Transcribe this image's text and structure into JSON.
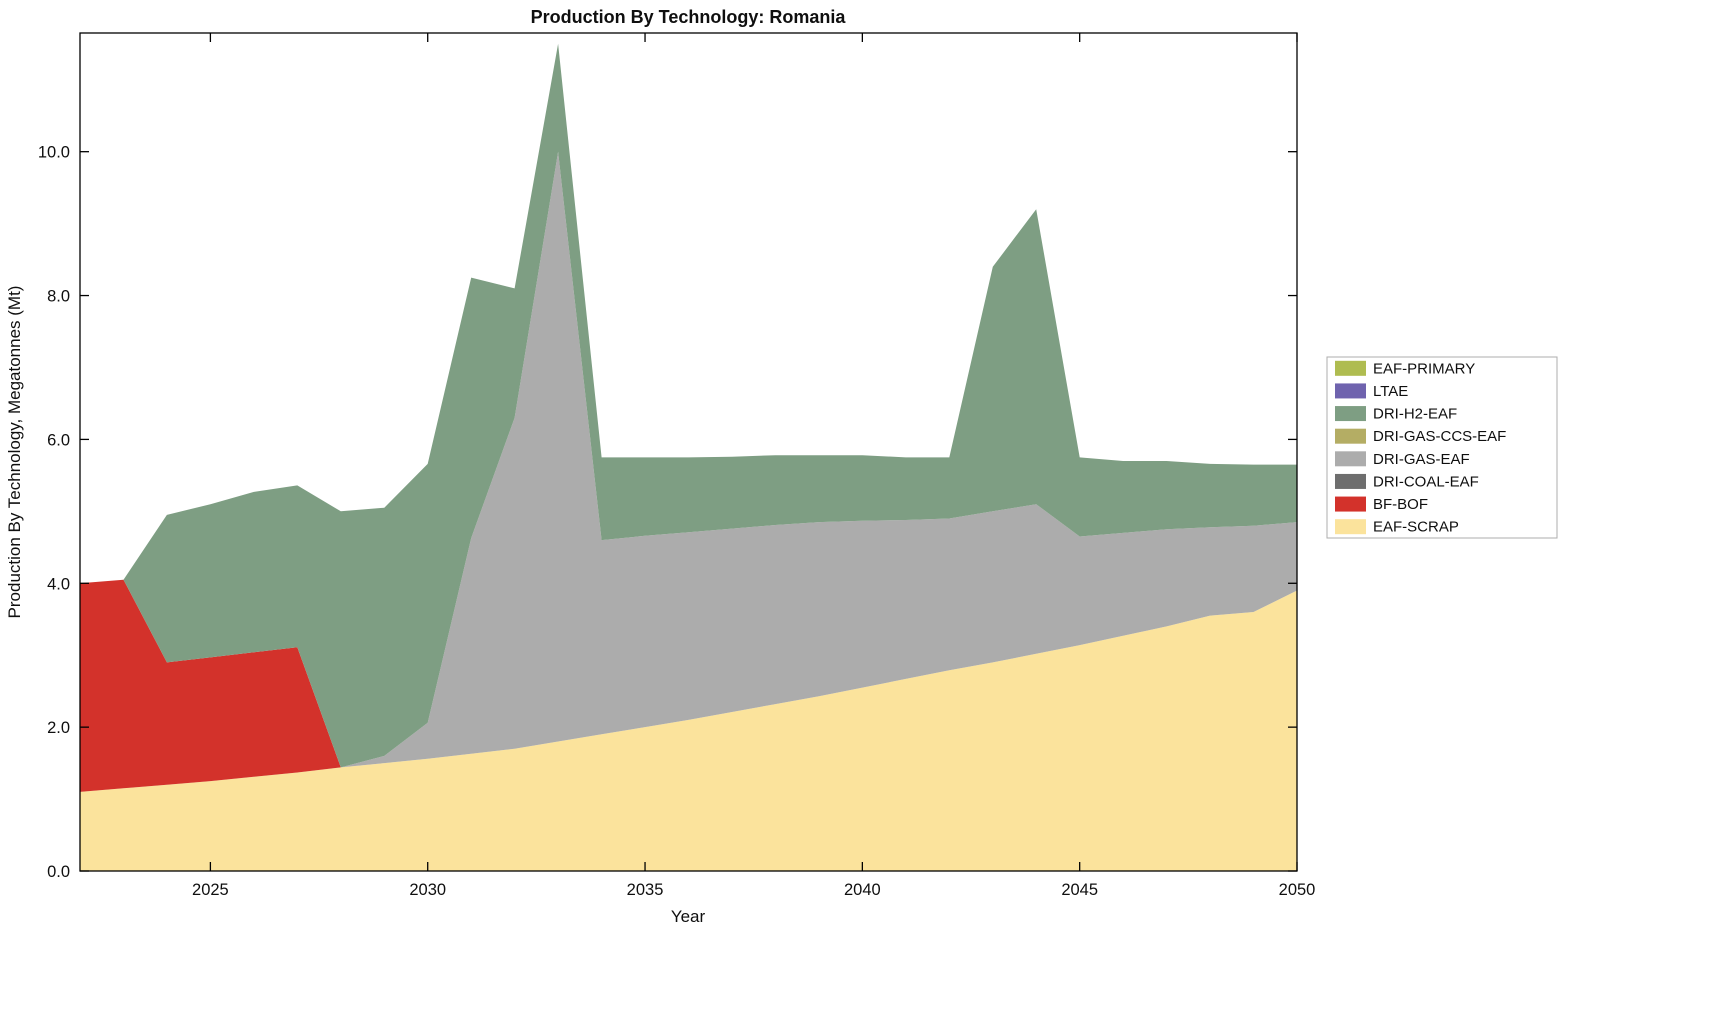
{
  "chart_data": {
    "type": "area",
    "stacked": true,
    "title": "Production By Technology: Romania",
    "xlabel": "Year",
    "ylabel": "Production By Technology, Megatonnes (Mt)",
    "x": [
      2022,
      2023,
      2024,
      2025,
      2026,
      2027,
      2028,
      2029,
      2030,
      2031,
      2032,
      2033,
      2034,
      2035,
      2036,
      2037,
      2038,
      2039,
      2040,
      2041,
      2042,
      2043,
      2044,
      2045,
      2046,
      2047,
      2048,
      2049,
      2050
    ],
    "xlim": [
      2022,
      2050
    ],
    "ylim": [
      0,
      11.65
    ],
    "grid": false,
    "legend_position": "right-outside",
    "xticks": {
      "values": [
        2025,
        2030,
        2035,
        2040,
        2045,
        2050
      ],
      "labels": [
        "2025",
        "2030",
        "2035",
        "2040",
        "2045",
        "2050"
      ]
    },
    "yticks": {
      "values": [
        0,
        2,
        4,
        6,
        8,
        10
      ],
      "labels": [
        "0.0",
        "2.0",
        "4.0",
        "6.0",
        "8.0",
        "10.0"
      ]
    },
    "legend_order_top_to_bottom": [
      "EAF-PRIMARY",
      "LTAE",
      "DRI-H2-EAF",
      "DRI-GAS-CCS-EAF",
      "DRI-GAS-EAF",
      "DRI-COAL-EAF",
      "BF-BOF",
      "EAF-SCRAP"
    ],
    "series": [
      {
        "name": "EAF-SCRAP",
        "color": "#FBE39C",
        "values": [
          1.1,
          1.15,
          1.2,
          1.25,
          1.31,
          1.37,
          1.44,
          1.5,
          1.56,
          1.63,
          1.7,
          1.8,
          1.9,
          2.0,
          2.1,
          2.21,
          2.32,
          2.43,
          2.55,
          2.67,
          2.79,
          2.9,
          3.02,
          3.14,
          3.27,
          3.4,
          3.55,
          3.6,
          3.9
        ]
      },
      {
        "name": "BF-BOF",
        "color": "#D3322B",
        "values": [
          2.9,
          2.9,
          1.7,
          1.72,
          1.73,
          1.74,
          0,
          0,
          0,
          0,
          0,
          0,
          0,
          0,
          0,
          0,
          0,
          0,
          0,
          0,
          0,
          0,
          0,
          0,
          0,
          0,
          0,
          0,
          0
        ]
      },
      {
        "name": "DRI-COAL-EAF",
        "color": "#6E6E6E",
        "values": [
          0,
          0,
          0,
          0,
          0,
          0,
          0,
          0,
          0,
          0,
          0,
          0,
          0,
          0,
          0,
          0,
          0,
          0,
          0,
          0,
          0,
          0,
          0,
          0,
          0,
          0,
          0,
          0,
          0
        ]
      },
      {
        "name": "DRI-GAS-EAF",
        "color": "#ACACAC",
        "values": [
          0,
          0,
          0,
          0,
          0,
          0,
          0,
          0.1,
          0.5,
          3.0,
          4.6,
          8.2,
          2.7,
          2.66,
          2.61,
          2.55,
          2.49,
          2.42,
          2.32,
          2.21,
          2.11,
          2.1,
          2.08,
          1.51,
          1.43,
          1.35,
          1.23,
          1.2,
          0.95
        ]
      },
      {
        "name": "DRI-GAS-CCS-EAF",
        "color": "#B4AD64",
        "values": [
          0,
          0,
          0,
          0,
          0,
          0,
          0,
          0,
          0,
          0,
          0,
          0,
          0,
          0,
          0,
          0,
          0,
          0,
          0,
          0,
          0,
          0,
          0,
          0,
          0,
          0,
          0,
          0,
          0
        ]
      },
      {
        "name": "DRI-H2-EAF",
        "color": "#7E9E83",
        "values": [
          0,
          0,
          2.05,
          2.13,
          2.23,
          2.25,
          3.56,
          3.45,
          3.6,
          3.62,
          1.8,
          1.5,
          1.15,
          1.09,
          1.04,
          1.0,
          0.97,
          0.93,
          0.91,
          0.87,
          0.85,
          3.4,
          4.1,
          1.1,
          1.0,
          0.95,
          0.88,
          0.85,
          0.8
        ]
      },
      {
        "name": "LTAE",
        "color": "#6F63AE",
        "values": [
          0,
          0,
          0,
          0,
          0,
          0,
          0,
          0,
          0,
          0,
          0,
          0,
          0,
          0,
          0,
          0,
          0,
          0,
          0,
          0,
          0,
          0,
          0,
          0,
          0,
          0,
          0,
          0,
          0
        ]
      },
      {
        "name": "EAF-PRIMARY",
        "color": "#AFBC50",
        "values": [
          0,
          0,
          0,
          0,
          0,
          0,
          0,
          0,
          0,
          0,
          0,
          0,
          0,
          0,
          0,
          0,
          0,
          0,
          0,
          0,
          0,
          0,
          0,
          0,
          0,
          0,
          0,
          0,
          0
        ]
      }
    ]
  }
}
